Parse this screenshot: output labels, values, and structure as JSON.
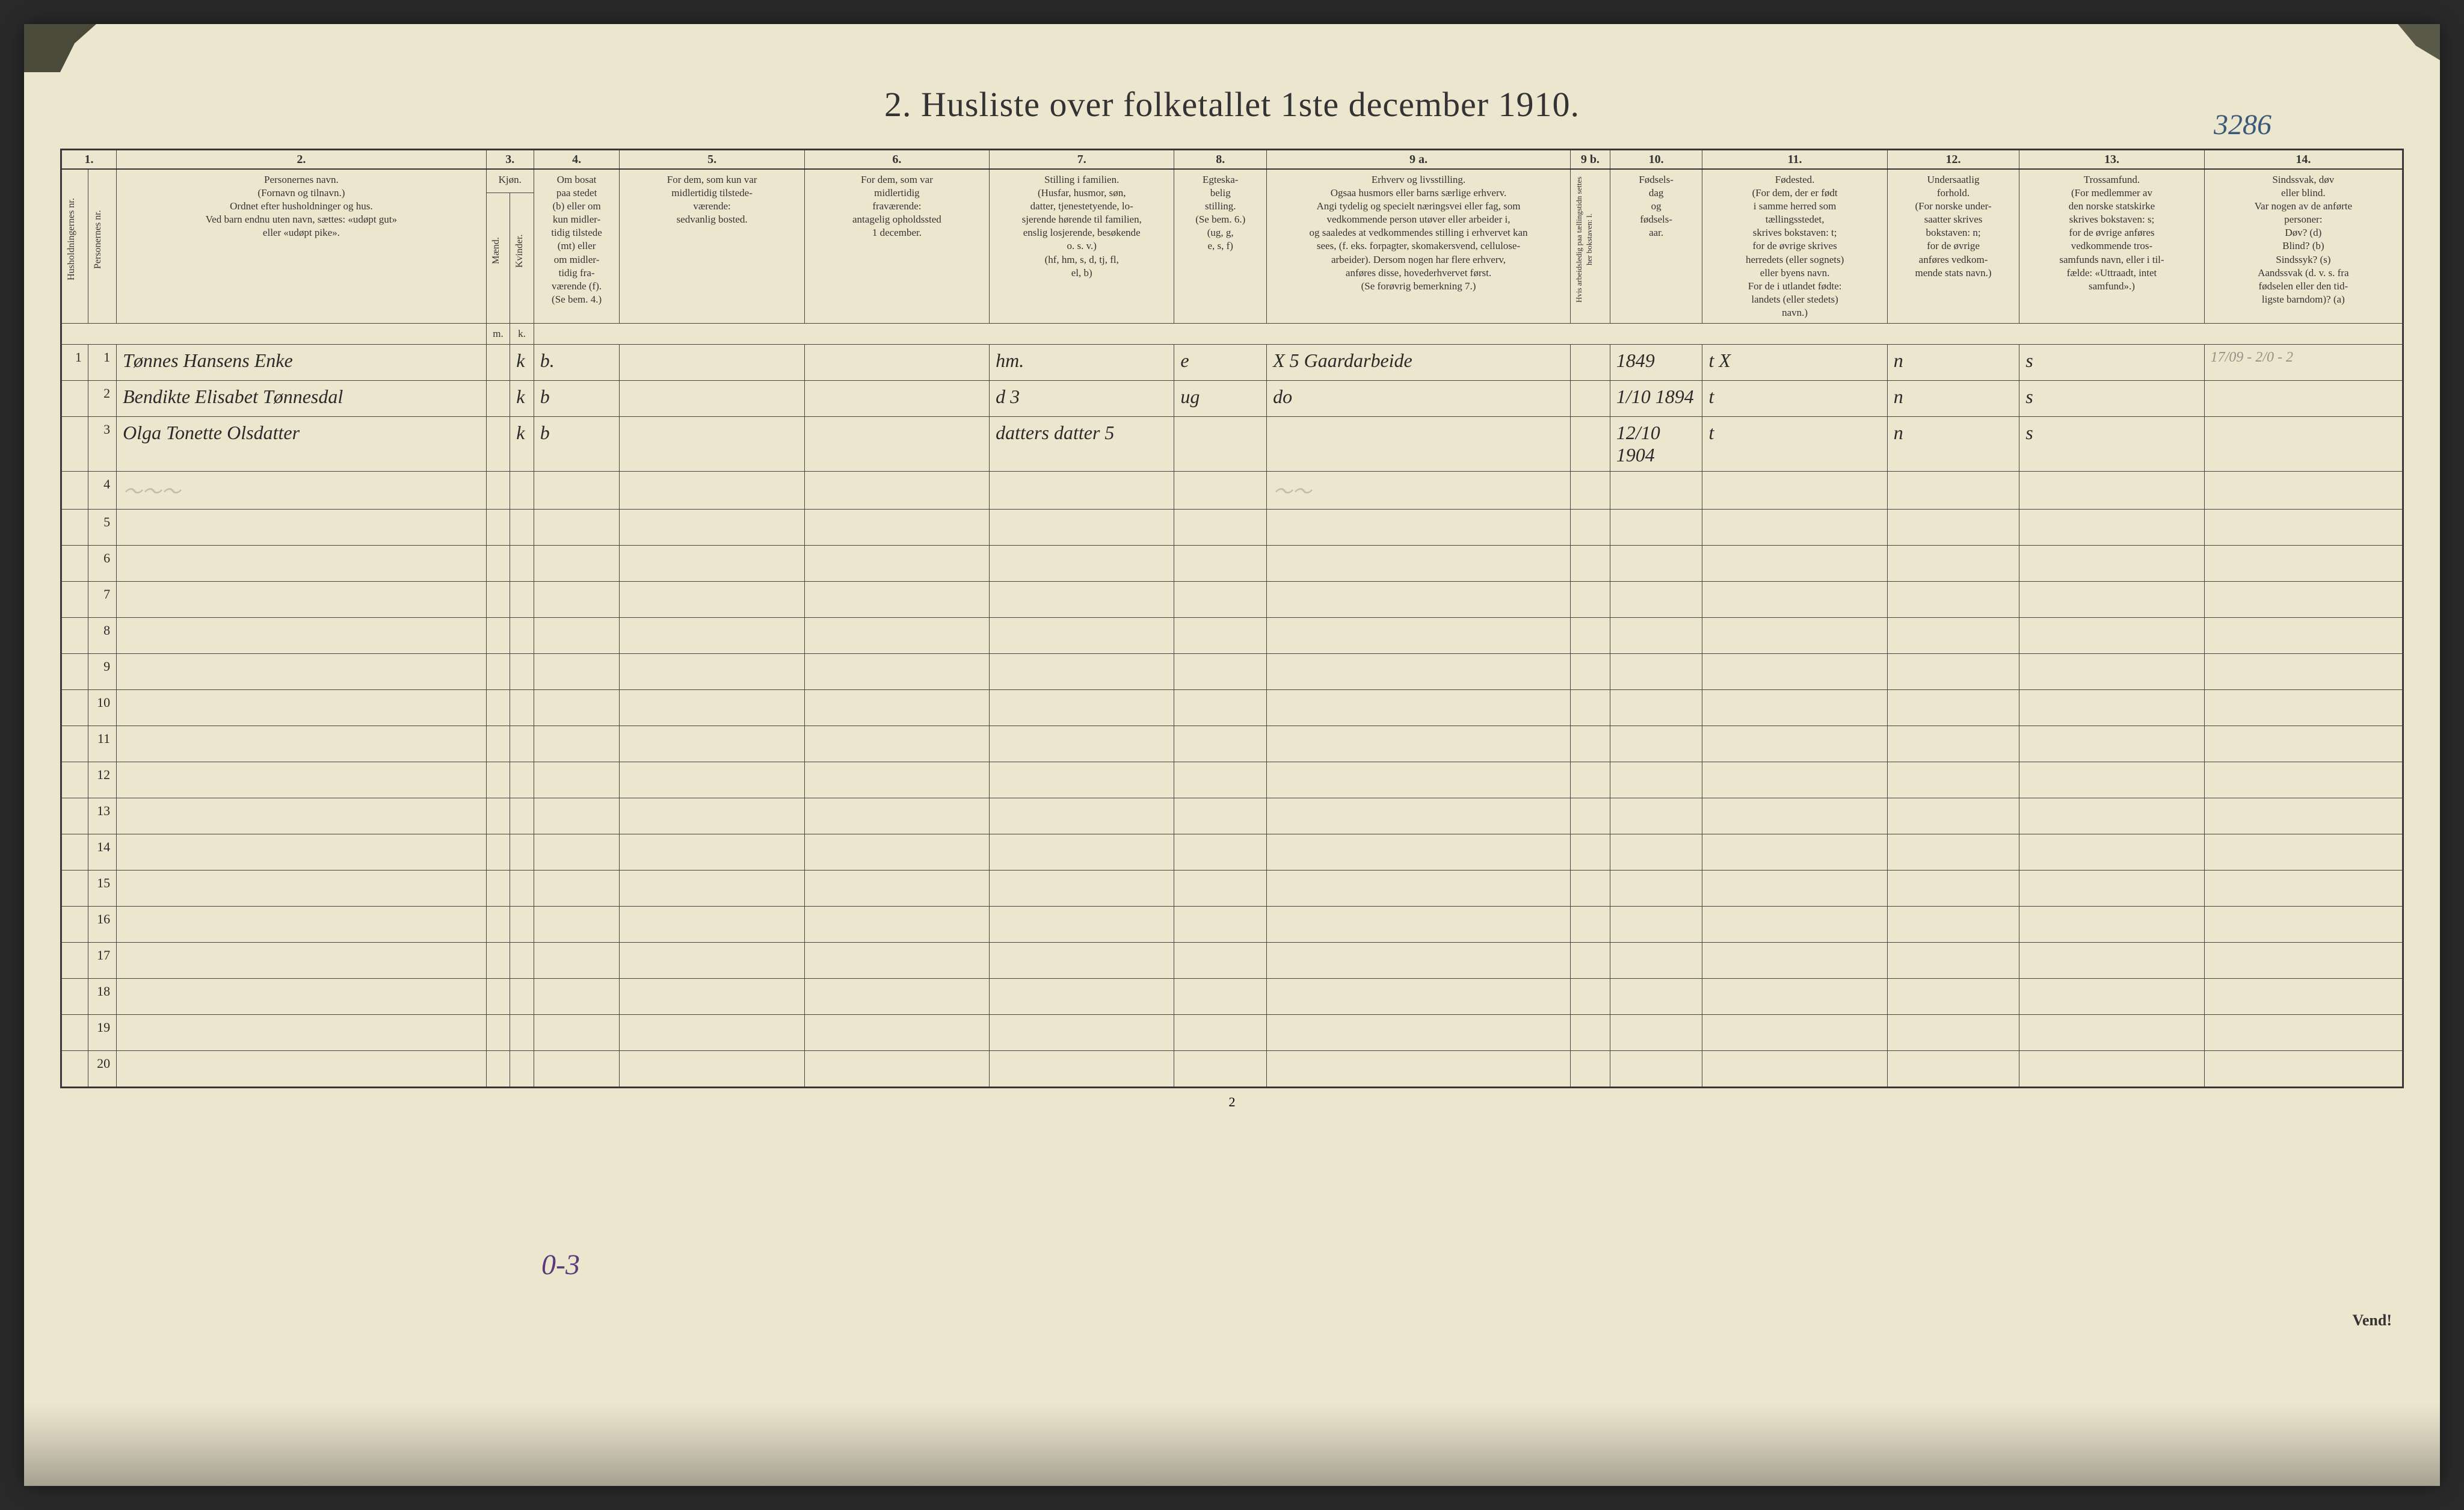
{
  "title": "2.  Husliste over folketallet 1ste december 1910.",
  "handwritten_topright": "3286",
  "handwritten_bottom": "0-3",
  "bottom_page_num": "2",
  "vend": "Vend!",
  "column_numbers": [
    "1.",
    "2.",
    "3.",
    "4.",
    "5.",
    "6.",
    "7.",
    "8.",
    "9 a.",
    "9 b.",
    "10.",
    "11.",
    "12.",
    "13.",
    "14."
  ],
  "headers": {
    "col1_vert_a": "Husholdningernes nr.",
    "col1_vert_b": "Personernes nr.",
    "col2": "Personernes navn.\n(Fornavn og tilnavn.)\nOrdnet efter husholdninger og hus.\nVed barn endnu uten navn, sættes: «udøpt gut»\neller «udøpt pike».",
    "col3_top": "Kjøn.",
    "col3_m_vert": "Mænd.",
    "col3_k_vert": "Kvinder.",
    "col3_m": "m.",
    "col3_k": "k.",
    "col4": "Om bosat\npaa stedet\n(b) eller om\nkun midler-\ntidig tilstede\n(mt) eller\nom midler-\ntidig fra-\nværende (f).\n(Se bem. 4.)",
    "col5": "For dem, som kun var\nmidlertidig tilstede-\nværende:\nsedvanlig bosted.",
    "col6": "For dem, som var\nmidlertidig\nfraværende:\nantagelig opholdssted\n1 december.",
    "col7": "Stilling i familien.\n(Husfar, husmor, søn,\ndatter, tjenestetyende, lo-\nsjerende hørende til familien,\nenslig losjerende, besøkende\no. s. v.)\n(hf, hm, s, d, tj, fl,\nel, b)",
    "col8": "Egteska-\nbelig\nstilling.\n(Se bem. 6.)\n(ug, g,\ne, s, f)",
    "col9a": "Erhverv og livsstilling.\nOgsaa husmors eller barns særlige erhverv.\nAngi tydelig og specielt næringsvei eller fag, som\nvedkommende person utøver eller arbeider i,\nog saaledes at vedkommendes stilling i erhvervet kan\nsees, (f. eks. forpagter, skomakersvend, cellulose-\narbeider). Dersom nogen har flere erhverv,\nanføres disse, hovederhvervet først.\n(Se forøvrig bemerkning 7.)",
    "col9b_vert": "Hvis arbeidsledig paa tællingstidn settes her bokstaven: l.",
    "col10": "Fødsels-\ndag\nog\nfødsels-\naar.",
    "col11": "Fødested.\n(For dem, der er født\ni samme herred som\ntællingsstedet,\nskrives bokstaven: t;\nfor de øvrige skrives\nherredets (eller sognets)\neller byens navn.\nFor de i utlandet fødte:\nlandets (eller stedets)\nnavn.)",
    "col12": "Undersaatlig\nforhold.\n(For norske under-\nsaatter skrives\nbokstaven: n;\nfor de øvrige\nanføres vedkom-\nmende stats navn.)",
    "col13": "Trossamfund.\n(For medlemmer av\nden norske statskirke\nskrives bokstaven: s;\nfor de øvrige anføres\nvedkommende tros-\nsamfunds navn, eller i til-\nfælde: «Uttraadt, intet\nsamfund».)",
    "col14": "Sindssvak, døv\neller blind.\nVar nogen av de anførte\npersoner:\nDøv?    (d)\nBlind?   (b)\nSindssyk? (s)\nAandssvak (d. v. s. fra\nfødselen eller den tid-\nligste barndom)? (a)"
  },
  "rows": [
    {
      "hnr": "1",
      "pnr": "1",
      "name": "Tønnes Hansens Enke",
      "kjon_m": "",
      "kjon_k": "k",
      "bosat": "b.",
      "col5": "",
      "col6": "",
      "stilling": "hm.",
      "egtesk": "e",
      "erhverv": "X 5  Gaardarbeide",
      "col9b": "",
      "fodsel": "1849",
      "fodested": "t            X",
      "undersaat": "n",
      "tros": "s",
      "col14": ""
    },
    {
      "hnr": "",
      "pnr": "2",
      "name": "Bendikte Elisabet Tønnesdal",
      "kjon_m": "",
      "kjon_k": "k",
      "bosat": "b",
      "col5": "",
      "col6": "",
      "stilling": "d         3",
      "egtesk": "ug",
      "erhverv": "do",
      "col9b": "",
      "fodsel": "1/10 1894",
      "fodested": "t",
      "undersaat": "n",
      "tros": "s",
      "col14": ""
    },
    {
      "hnr": "",
      "pnr": "3",
      "name": "Olga Tonette Olsdatter",
      "kjon_m": "",
      "kjon_k": "k",
      "bosat": "b",
      "col5": "",
      "col6": "",
      "stilling": "datters datter 5",
      "egtesk": "",
      "erhverv": "",
      "col9b": "",
      "fodsel": "12/10 1904",
      "fodested": "t",
      "undersaat": "n",
      "tros": "s",
      "col14": ""
    }
  ],
  "handwritten_col14": "17/09 - 2/0 - 2",
  "empty_row_nums": [
    "4",
    "5",
    "6",
    "7",
    "8",
    "9",
    "10",
    "11",
    "12",
    "13",
    "14",
    "15",
    "16",
    "17",
    "18",
    "19",
    "20"
  ],
  "colors": {
    "paper": "#ede6cf",
    "ink": "#333333",
    "handwriting": "#2a2a2a",
    "blue_ink": "#3a5a7a",
    "purple_ink": "#5a3a7a"
  }
}
